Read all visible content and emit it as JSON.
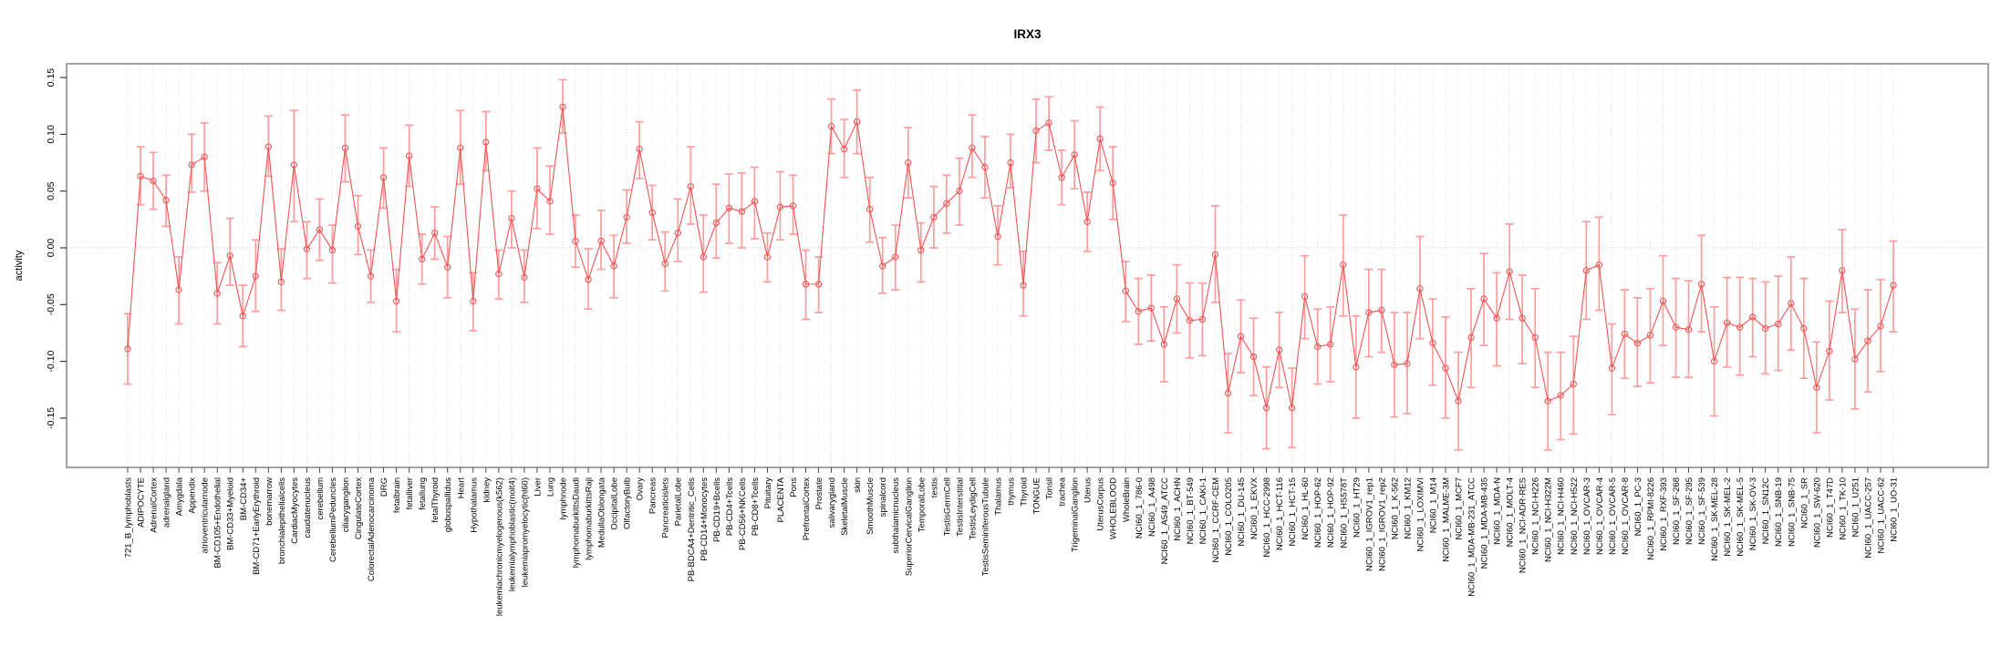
{
  "figure": {
    "background": "#ffffff",
    "title": "IRX3",
    "ylabel": "activity",
    "colors": {
      "frame": "#8c8c8c",
      "grid": "#d9d9d9",
      "zero_line": "#bdbdbd",
      "tick": "#3a3a3a",
      "text": "#000000",
      "line": "#f25252",
      "marker": "#f25252",
      "error_bar": "#ff9c9c"
    }
  },
  "chart_data": {
    "type": "scatter",
    "subtype": "dot-with-error-bars",
    "title": "IRX3",
    "xlabel": "",
    "ylabel": "activity",
    "ylim": [
      -0.193,
      0.162
    ],
    "yticks": [
      -0.15,
      -0.1,
      -0.05,
      0.0,
      0.05,
      0.1,
      0.15
    ],
    "ytick_labels": [
      "-0.15",
      "-0.10",
      "-0.05",
      "0.00",
      "0.05",
      "0.10",
      "0.15"
    ],
    "grid": "vertical dotted line per category; horizontal dotted line at 0",
    "legend": "none",
    "marker": "open-circle",
    "categories": [
      "721_B_lymphoblasts",
      "ADIPOCYTE",
      "AdrenalCortex",
      "adrenalgland",
      "Amygdala",
      "Appendix",
      "atrioventricularnode",
      "BM-CD105+Endothelial",
      "BM-CD33+Myeloid",
      "BM-CD34+",
      "BM-CD71+EarlyErythroid",
      "bonemarrow",
      "bronchialepithelialcells",
      "CardiacMyocytes",
      "caudatenucleus",
      "cerebellum",
      "CerebellumPeduncles",
      "ciliaryganglion",
      "CingulateCortex",
      "ColorectalAdenocarcinoma",
      "DRG",
      "fetalbrain",
      "fetalliver",
      "fetallung",
      "fetalThyroid",
      "globuspallidus",
      "Heart",
      "Hypothalamus",
      "kidney",
      "leukemiachronicmyelogenous(k562)",
      "leukemialymphoblastic(molt4)",
      "leukemiapromyelocytic(hl60)",
      "Liver",
      "Lung",
      "lymphnode",
      "lymphomaburkittsDaudi",
      "lymphomaburkittsRaji",
      "MedullaOblongata",
      "OccipitalLobe",
      "OlfactoryBulb",
      "Ovary",
      "Pancreas",
      "Pancreaticislets",
      "ParietalLobe",
      "PB-BDCA4+Dentritic_Cells",
      "PB-CD14+Monocytes",
      "PB-CD19+Bcells",
      "PB-CD4+Tcells",
      "PB-CD56+NKCells",
      "PB-CD8+Tcells",
      "Pituitary",
      "PLACENTA",
      "Pons",
      "PrefrontalCortex",
      "Prostate",
      "salivarygland",
      "SkeletalMuscle",
      "skin",
      "SmoothMuscle",
      "spinalcord",
      "subthalamicnucleus",
      "SuperiorCervicalGanglion",
      "TemporalLobe",
      "testis",
      "TestisGermCell",
      "TestisInterstitial",
      "TestisLeydigCell",
      "TestisSeminiferousTubule",
      "Thalamus",
      "thymus",
      "Thyroid",
      "TONGUE",
      "Tonsil",
      "trachea",
      "TrigeminalGanglion",
      "Uterus",
      "UterusCorpus",
      "WHOLEBLOOD",
      "WholeBrain",
      "NCI60_1_786-0",
      "NCI60_1_A498",
      "NCI60_1_A549_ATCC",
      "NCI60_1_ACHN",
      "NCI60_1_BT-549",
      "NCI60_1_CAKI-1",
      "NCI60_1_CCRF-CEM",
      "NCI60_1_COLO205",
      "NCI60_1_DU-145",
      "NCI60_1_EKVX",
      "NCI60_1_HCC-2998",
      "NCI60_1_HCT-116",
      "NCI60_1_HCT-15",
      "NCI60_1_HL-60",
      "NCI60_1_HOP-62",
      "NCI60_1_HOP-92",
      "NCI60_1_HS578T",
      "NCI60_1_HT29",
      "NCI60_1_IGROV1_rep1",
      "NCI60_1_IGROV1_rep2",
      "NCI60_1_K-562",
      "NCI60_1_KM12",
      "NCI60_1_LOXIMVI",
      "NCI60_1_M14",
      "NCI60_1_MALME-3M",
      "NCI60_1_MCF7",
      "NCI60_1_MDA-MB-231_ATCC",
      "NCI60_1_MDA-MB-435",
      "NCI60_1_MDA-N",
      "NCI60_1_MOLT-4",
      "NCI60_1_NCI-ADR-RES",
      "NCI60_1_NCI-H226",
      "NCI60_1_NCI-H322M",
      "NCI60_1_NCI-H460",
      "NCI60_1_NCI-H522",
      "NCI60_1_OVCAR-3",
      "NCI60_1_OVCAR-4",
      "NCI60_1_OVCAR-5",
      "NCI60_1_OVCAR-8",
      "NCI60_1_PC-3",
      "NCI60_1_RPMI-8226",
      "NCI60_1_RXF-393",
      "NCI60_1_SF-268",
      "NCI60_1_SF-295",
      "NCI60_1_SF-539",
      "NCI60_1_SK-MEL-28",
      "NCI60_1_SK-MEL-2",
      "NCI60_1_SK-MEL-5",
      "NCI60_1_SK-OV-3",
      "NCI60_1_SN12C",
      "NCI60_1_SNB-19",
      "NCI60_1_SNB-75",
      "NCI60_1_SR",
      "NCI60_1_SW-620",
      "NCI60_1_T47D",
      "NCI60_1_TK-10",
      "NCI60_1_U251",
      "NCI60_1_UACC-257",
      "NCI60_1_UACC-62",
      "NCI60_1_UO-31"
    ],
    "series": [
      {
        "name": "activity",
        "values": [
          -0.089,
          0.063,
          0.059,
          0.042,
          -0.037,
          0.073,
          0.08,
          -0.04,
          -0.007,
          -0.06,
          -0.025,
          0.089,
          -0.03,
          0.073,
          -0.001,
          0.016,
          -0.002,
          0.088,
          0.019,
          -0.025,
          0.062,
          -0.047,
          0.081,
          -0.01,
          0.013,
          -0.017,
          0.088,
          -0.047,
          0.093,
          -0.023,
          0.026,
          -0.026,
          0.052,
          0.041,
          0.124,
          0.006,
          -0.028,
          0.006,
          -0.016,
          0.027,
          0.087,
          0.031,
          -0.014,
          0.013,
          0.054,
          -0.008,
          0.022,
          0.035,
          0.032,
          0.041,
          -0.008,
          0.036,
          0.037,
          -0.032,
          -0.032,
          0.107,
          0.087,
          0.111,
          0.034,
          -0.016,
          -0.008,
          0.075,
          -0.002,
          0.027,
          0.039,
          0.05,
          0.088,
          0.071,
          0.01,
          0.075,
          -0.033,
          0.103,
          0.11,
          0.062,
          0.082,
          0.023,
          0.096,
          0.057,
          -0.038,
          -0.056,
          -0.053,
          -0.085,
          -0.045,
          -0.064,
          -0.063,
          -0.006,
          -0.128,
          -0.078,
          -0.096,
          -0.141,
          -0.09,
          -0.141,
          -0.043,
          -0.087,
          -0.085,
          -0.015,
          -0.105,
          -0.057,
          -0.055,
          -0.103,
          -0.102,
          -0.036,
          -0.084,
          -0.106,
          -0.135,
          -0.079,
          -0.045,
          -0.062,
          -0.021,
          -0.062,
          -0.079,
          -0.135,
          -0.13,
          -0.12,
          -0.02,
          -0.015,
          -0.106,
          -0.076,
          -0.084,
          -0.077,
          -0.047,
          -0.07,
          -0.072,
          -0.032,
          -0.1,
          -0.066,
          -0.07,
          -0.061,
          -0.071,
          -0.067,
          -0.049,
          -0.071,
          -0.123,
          -0.091,
          -0.02,
          -0.098,
          -0.082,
          -0.069,
          -0.033
        ],
        "err_low": [
          -0.12,
          0.038,
          0.034,
          0.019,
          -0.067,
          0.049,
          0.05,
          -0.067,
          -0.033,
          -0.087,
          -0.056,
          0.063,
          -0.055,
          0.023,
          -0.027,
          -0.011,
          -0.031,
          0.058,
          -0.006,
          -0.048,
          0.035,
          -0.074,
          0.054,
          -0.032,
          -0.01,
          -0.044,
          0.056,
          -0.073,
          0.068,
          -0.045,
          0.0,
          -0.048,
          0.017,
          0.012,
          0.101,
          -0.017,
          -0.054,
          -0.019,
          -0.044,
          0.004,
          0.061,
          0.007,
          -0.038,
          -0.012,
          0.021,
          -0.039,
          -0.009,
          0.004,
          0.0,
          0.008,
          -0.03,
          0.007,
          0.012,
          -0.063,
          -0.057,
          0.083,
          0.062,
          0.083,
          0.005,
          -0.04,
          -0.037,
          0.044,
          -0.03,
          0.0,
          0.013,
          0.02,
          0.062,
          0.044,
          -0.015,
          0.053,
          -0.06,
          0.075,
          0.086,
          0.038,
          0.052,
          -0.003,
          0.068,
          0.025,
          -0.065,
          -0.085,
          -0.082,
          -0.118,
          -0.075,
          -0.097,
          -0.095,
          -0.048,
          -0.163,
          -0.11,
          -0.13,
          -0.177,
          -0.123,
          -0.176,
          -0.08,
          -0.12,
          -0.118,
          -0.06,
          -0.15,
          -0.096,
          -0.092,
          -0.149,
          -0.146,
          -0.08,
          -0.121,
          -0.15,
          -0.178,
          -0.123,
          -0.086,
          -0.104,
          -0.063,
          -0.102,
          -0.123,
          -0.178,
          -0.169,
          -0.164,
          -0.063,
          -0.055,
          -0.147,
          -0.115,
          -0.122,
          -0.119,
          -0.086,
          -0.114,
          -0.114,
          -0.074,
          -0.148,
          -0.105,
          -0.112,
          -0.096,
          -0.111,
          -0.108,
          -0.09,
          -0.115,
          -0.163,
          -0.134,
          -0.057,
          -0.142,
          -0.127,
          -0.109,
          -0.074
        ],
        "err_high": [
          -0.058,
          0.089,
          0.084,
          0.064,
          -0.008,
          0.1,
          0.11,
          -0.013,
          0.026,
          -0.033,
          0.007,
          0.116,
          -0.001,
          0.121,
          0.023,
          0.043,
          0.02,
          0.117,
          0.046,
          -0.002,
          0.088,
          -0.019,
          0.108,
          0.012,
          0.036,
          0.01,
          0.121,
          -0.022,
          0.12,
          -0.002,
          0.05,
          -0.002,
          0.088,
          0.072,
          0.148,
          0.029,
          -0.001,
          0.033,
          0.011,
          0.051,
          0.111,
          0.055,
          0.014,
          0.043,
          0.089,
          0.029,
          0.056,
          0.065,
          0.066,
          0.071,
          0.013,
          0.067,
          0.064,
          -0.002,
          -0.008,
          0.131,
          0.113,
          0.139,
          0.062,
          0.009,
          0.02,
          0.106,
          0.022,
          0.054,
          0.064,
          0.079,
          0.117,
          0.098,
          0.037,
          0.1,
          -0.003,
          0.131,
          0.133,
          0.086,
          0.112,
          0.049,
          0.124,
          0.089,
          -0.012,
          -0.027,
          -0.024,
          -0.052,
          -0.015,
          -0.031,
          -0.031,
          0.037,
          -0.093,
          -0.046,
          -0.062,
          -0.105,
          -0.057,
          -0.106,
          -0.007,
          -0.054,
          -0.052,
          0.029,
          -0.06,
          -0.019,
          -0.019,
          -0.057,
          -0.057,
          0.01,
          -0.045,
          -0.061,
          -0.092,
          -0.036,
          -0.005,
          -0.022,
          0.021,
          -0.024,
          -0.036,
          -0.092,
          -0.092,
          -0.078,
          0.023,
          0.027,
          -0.067,
          -0.037,
          -0.044,
          -0.036,
          -0.007,
          -0.027,
          -0.029,
          0.011,
          -0.052,
          -0.026,
          -0.026,
          -0.027,
          -0.03,
          -0.025,
          -0.008,
          -0.027,
          -0.083,
          -0.047,
          0.016,
          -0.054,
          -0.037,
          -0.028,
          0.006
        ]
      }
    ]
  }
}
